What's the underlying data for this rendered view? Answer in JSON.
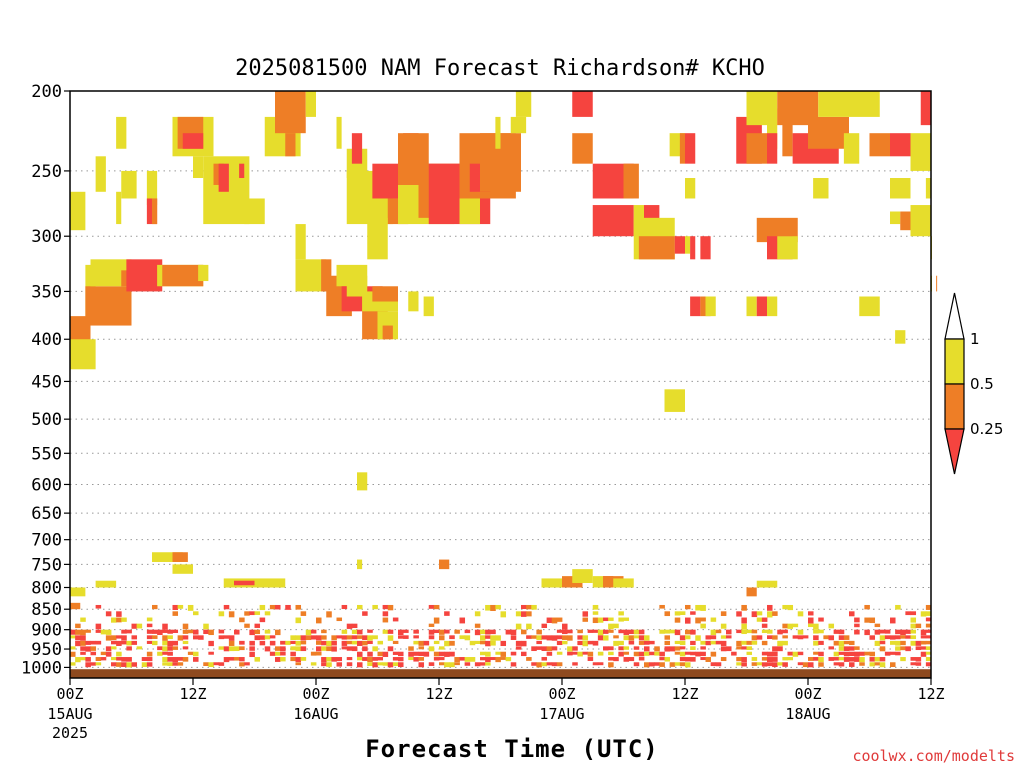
{
  "chart_data": {
    "type": "heatmap",
    "title": "2025081500 NAM Forecast Richardson# KCHO",
    "xlabel": "Forecast Time (UTC)",
    "ylabel": "",
    "credit": "coolwx.com/modelts",
    "y_axis": {
      "unit": "hPa",
      "scale": "log",
      "inverted": true,
      "range": [
        200,
        1030
      ],
      "ticks": [
        "200",
        "250",
        "300",
        "350",
        "400",
        "450",
        "500",
        "550",
        "600",
        "650",
        "700",
        "750",
        "800",
        "850",
        "900",
        "950",
        "1000"
      ]
    },
    "x_axis": {
      "unit": "hours from 2025-08-15 00Z",
      "range": [
        0,
        84
      ],
      "ticks": [
        {
          "hour": 0,
          "label": "00Z",
          "sub": "15AUG",
          "sub2": "2025"
        },
        {
          "hour": 12,
          "label": "12Z",
          "sub": "",
          "sub2": ""
        },
        {
          "hour": 24,
          "label": "00Z",
          "sub": "16AUG",
          "sub2": ""
        },
        {
          "hour": 36,
          "label": "12Z",
          "sub": "",
          "sub2": ""
        },
        {
          "hour": 48,
          "label": "00Z",
          "sub": "17AUG",
          "sub2": ""
        },
        {
          "hour": 60,
          "label": "12Z",
          "sub": "",
          "sub2": ""
        },
        {
          "hour": 72,
          "label": "00Z",
          "sub": "18AUG",
          "sub2": ""
        },
        {
          "hour": 84,
          "label": "12Z",
          "sub": "",
          "sub2": ""
        }
      ]
    },
    "grid": "dotted horizontal at pressure ticks",
    "legend": {
      "position": "right",
      "labels": [
        "1",
        "0.5",
        "0.25"
      ],
      "classes": [
        {
          "range": "0.5-1",
          "color": "#e6dd2c"
        },
        {
          "range": "0.25-0.5",
          "color": "#ee7e26"
        },
        {
          "range": "<0.25",
          "color": "#f5443f"
        }
      ]
    },
    "colors": {
      "yellow": "#e6dd2c",
      "orange": "#ee7e26",
      "red": "#f5443f",
      "ground": "#8e4a1f"
    },
    "surface_pressure": 1005,
    "cells": [
      [
        0,
        1.5,
        265,
        295,
        "y"
      ],
      [
        0,
        2,
        375,
        405,
        "o"
      ],
      [
        0,
        2.5,
        400,
        435,
        "y"
      ],
      [
        1.5,
        2.5,
        325,
        375,
        "y"
      ],
      [
        1.5,
        6,
        345,
        385,
        "o"
      ],
      [
        2,
        6,
        320,
        345,
        "y"
      ],
      [
        5,
        8.5,
        330,
        345,
        "o"
      ],
      [
        5.5,
        9,
        320,
        350,
        "r"
      ],
      [
        8.5,
        13,
        325,
        345,
        "y"
      ],
      [
        9,
        13,
        325,
        345,
        "o"
      ],
      [
        12.5,
        13.5,
        325,
        340,
        "y"
      ],
      [
        4.5,
        5.5,
        215,
        235,
        "y"
      ],
      [
        2.5,
        3.5,
        240,
        265,
        "y"
      ],
      [
        5,
        6.5,
        250,
        270,
        "y"
      ],
      [
        4.5,
        5,
        265,
        290,
        "y"
      ],
      [
        7.5,
        8.5,
        250,
        275,
        "y"
      ],
      [
        7.5,
        8.5,
        270,
        290,
        "r"
      ],
      [
        8,
        8.5,
        270,
        290,
        "o"
      ],
      [
        10,
        14,
        215,
        240,
        "y"
      ],
      [
        10.5,
        13,
        215,
        235,
        "o"
      ],
      [
        11,
        13,
        225,
        235,
        "r"
      ],
      [
        12,
        13,
        240,
        255,
        "y"
      ],
      [
        13,
        17.5,
        240,
        290,
        "y"
      ],
      [
        14,
        15,
        245,
        260,
        "o"
      ],
      [
        14.5,
        15.5,
        245,
        265,
        "r"
      ],
      [
        16.5,
        17,
        245,
        255,
        "r"
      ],
      [
        17,
        19,
        270,
        290,
        "y"
      ],
      [
        19,
        22.5,
        215,
        240,
        "y"
      ],
      [
        20,
        23,
        200,
        225,
        "o"
      ],
      [
        21,
        22,
        225,
        240,
        "o"
      ],
      [
        23,
        24,
        200,
        215,
        "y"
      ],
      [
        26,
        26.5,
        215,
        235,
        "y"
      ],
      [
        27,
        29,
        235,
        255,
        "y"
      ],
      [
        27.5,
        28.5,
        225,
        245,
        "r"
      ],
      [
        27,
        31.5,
        250,
        290,
        "y"
      ],
      [
        29.5,
        35,
        245,
        270,
        "r"
      ],
      [
        31,
        33,
        270,
        290,
        "o"
      ],
      [
        32.5,
        34,
        225,
        245,
        "r"
      ],
      [
        32,
        35,
        225,
        260,
        "o"
      ],
      [
        32,
        37.5,
        260,
        290,
        "y"
      ],
      [
        34,
        40,
        245,
        285,
        "o"
      ],
      [
        35,
        41,
        245,
        290,
        "r"
      ],
      [
        38,
        40,
        255,
        290,
        "y"
      ],
      [
        38,
        43.5,
        225,
        270,
        "o"
      ],
      [
        39,
        41,
        245,
        265,
        "r"
      ],
      [
        40,
        44,
        225,
        265,
        "o"
      ],
      [
        41.5,
        42,
        215,
        235,
        "y"
      ],
      [
        43.5,
        45,
        200,
        215,
        "y"
      ],
      [
        43,
        44.5,
        215,
        225,
        "y"
      ],
      [
        22,
        23,
        290,
        320,
        "y"
      ],
      [
        22,
        25,
        320,
        350,
        "y"
      ],
      [
        24.5,
        25.5,
        320,
        350,
        "o"
      ],
      [
        25,
        27.5,
        335,
        375,
        "o"
      ],
      [
        26,
        29,
        325,
        345,
        "y"
      ],
      [
        26.5,
        30.5,
        345,
        370,
        "r"
      ],
      [
        27,
        29,
        335,
        355,
        "y"
      ],
      [
        28.5,
        31,
        355,
        400,
        "o"
      ],
      [
        28.5,
        32,
        350,
        370,
        "y"
      ],
      [
        29.5,
        32,
        345,
        360,
        "o"
      ],
      [
        30,
        32,
        370,
        400,
        "y"
      ],
      [
        30.5,
        31.5,
        385,
        400,
        "o"
      ],
      [
        29,
        31,
        285,
        320,
        "y"
      ],
      [
        33,
        34,
        350,
        370,
        "y"
      ],
      [
        49,
        50,
        200,
        215,
        "r"
      ],
      [
        50,
        51,
        200,
        215,
        "r"
      ],
      [
        49,
        51,
        225,
        245,
        "o"
      ],
      [
        51,
        55,
        245,
        270,
        "r"
      ],
      [
        51,
        55,
        275,
        300,
        "r"
      ],
      [
        55,
        56,
        275,
        300,
        "y"
      ],
      [
        56,
        57.5,
        275,
        300,
        "r"
      ],
      [
        54,
        55.5,
        245,
        270,
        "o"
      ],
      [
        55,
        59,
        285,
        320,
        "y"
      ],
      [
        55.5,
        59,
        300,
        320,
        "o"
      ],
      [
        59,
        60,
        300,
        315,
        "r"
      ],
      [
        60,
        60.5,
        300,
        315,
        "y"
      ],
      [
        60.5,
        61,
        300,
        320,
        "r"
      ],
      [
        61.5,
        62.5,
        300,
        320,
        "r"
      ],
      [
        58.5,
        60,
        225,
        240,
        "y"
      ],
      [
        59.5,
        60,
        225,
        245,
        "o"
      ],
      [
        60,
        61,
        225,
        245,
        "r"
      ],
      [
        60,
        61,
        255,
        270,
        "y"
      ],
      [
        65,
        67.5,
        215,
        245,
        "r"
      ],
      [
        66,
        68,
        225,
        245,
        "o"
      ],
      [
        68,
        69,
        210,
        235,
        "y"
      ],
      [
        68,
        69,
        225,
        245,
        "r"
      ],
      [
        69.5,
        70.5,
        215,
        240,
        "o"
      ],
      [
        70.5,
        72,
        225,
        245,
        "r"
      ],
      [
        72,
        75,
        225,
        245,
        "r"
      ],
      [
        72,
        76,
        215,
        235,
        "o"
      ],
      [
        75.5,
        77,
        225,
        245,
        "y"
      ],
      [
        67,
        71,
        285,
        305,
        "o"
      ],
      [
        68,
        70.5,
        300,
        320,
        "r"
      ],
      [
        69,
        71,
        300,
        320,
        "y"
      ],
      [
        72.5,
        74,
        255,
        270,
        "y"
      ],
      [
        66,
        69,
        200,
        220,
        "y"
      ],
      [
        69,
        73,
        200,
        220,
        "o"
      ],
      [
        73,
        76,
        200,
        215,
        "y"
      ],
      [
        76,
        79,
        200,
        215,
        "y"
      ],
      [
        78,
        80,
        225,
        240,
        "o"
      ],
      [
        80,
        82,
        225,
        240,
        "r"
      ],
      [
        80,
        82,
        255,
        270,
        "y"
      ],
      [
        82,
        84,
        225,
        250,
        "y"
      ],
      [
        83,
        84,
        200,
        220,
        "r"
      ],
      [
        83.5,
        84,
        255,
        270,
        "y"
      ],
      [
        80,
        81,
        280,
        290,
        "y"
      ],
      [
        81,
        82,
        280,
        295,
        "o"
      ],
      [
        82,
        84,
        275,
        300,
        "y"
      ],
      [
        84,
        85,
        300,
        320,
        "y"
      ],
      [
        84,
        85,
        335,
        350,
        "y"
      ],
      [
        84.5,
        85,
        335,
        350,
        "o"
      ],
      [
        60.5,
        61.5,
        355,
        375,
        "r"
      ],
      [
        61.5,
        62.5,
        355,
        375,
        "o"
      ],
      [
        62,
        63,
        355,
        375,
        "y"
      ],
      [
        66,
        67,
        355,
        375,
        "y"
      ],
      [
        67,
        68,
        355,
        375,
        "r"
      ],
      [
        68,
        69,
        355,
        375,
        "y"
      ],
      [
        77,
        79,
        355,
        375,
        "y"
      ],
      [
        34.5,
        35.5,
        355,
        375,
        "y"
      ],
      [
        80.5,
        81.5,
        390,
        405,
        "y"
      ],
      [
        58,
        60,
        460,
        490,
        "y"
      ],
      [
        28,
        29,
        580,
        610,
        "y"
      ],
      [
        8,
        11,
        725,
        745,
        "y"
      ],
      [
        10,
        11.5,
        725,
        745,
        "o"
      ],
      [
        10,
        12,
        750,
        770,
        "y"
      ],
      [
        2.5,
        4.5,
        785,
        800,
        "y"
      ],
      [
        15,
        18,
        780,
        800,
        "y"
      ],
      [
        16,
        18,
        785,
        795,
        "r"
      ],
      [
        18,
        21,
        780,
        800,
        "y"
      ],
      [
        36,
        37,
        740,
        760,
        "o"
      ],
      [
        28,
        28.5,
        740,
        760,
        "y"
      ],
      [
        46,
        50,
        780,
        800,
        "y"
      ],
      [
        48,
        50,
        775,
        800,
        "o"
      ],
      [
        49,
        51,
        760,
        790,
        "y"
      ],
      [
        51,
        52,
        775,
        800,
        "y"
      ],
      [
        52,
        53,
        775,
        800,
        "r"
      ],
      [
        52,
        54,
        775,
        800,
        "o"
      ],
      [
        53,
        55,
        780,
        800,
        "y"
      ],
      [
        67,
        69,
        785,
        800,
        "y"
      ],
      [
        66,
        67,
        800,
        820,
        "o"
      ],
      [
        0,
        1.5,
        800,
        820,
        "y"
      ],
      [
        0,
        1,
        835,
        850,
        "o"
      ],
      [
        0,
        84,
        840,
        900,
        "mix"
      ],
      [
        0,
        84,
        900,
        1000,
        "mixr"
      ]
    ]
  }
}
